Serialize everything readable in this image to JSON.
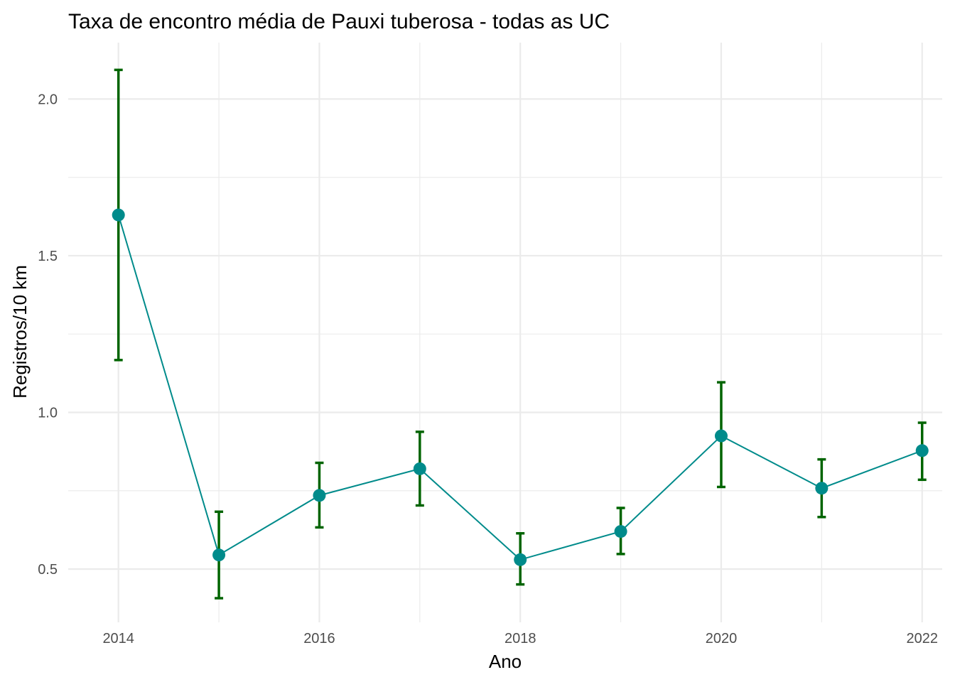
{
  "chart_data": {
    "type": "line",
    "title": "Taxa de encontro média de Pauxi tuberosa - todas as UC",
    "xlabel": "Ano",
    "ylabel": "Registros/10 km",
    "x": [
      2014,
      2015,
      2016,
      2017,
      2018,
      2019,
      2020,
      2021,
      2022
    ],
    "y": [
      1.63,
      0.545,
      0.735,
      0.82,
      0.53,
      0.62,
      0.925,
      0.758,
      0.878
    ],
    "ymin": [
      1.167,
      0.407,
      0.633,
      0.703,
      0.451,
      0.548,
      0.762,
      0.666,
      0.785
    ],
    "ymax": [
      2.093,
      0.683,
      0.839,
      0.938,
      0.614,
      0.695,
      1.096,
      0.85,
      0.967
    ],
    "xlim": [
      2013.5,
      2022.2
    ],
    "ylim": [
      0.33,
      2.18
    ],
    "x_ticks": [
      2014,
      2016,
      2018,
      2020,
      2022
    ],
    "y_ticks": [
      0.5,
      1.0,
      1.5,
      2.0
    ],
    "y_tick_labels": [
      "0.5",
      "1.0",
      "1.5",
      "2.0"
    ],
    "grid": true,
    "legend": "none",
    "colors": {
      "line": "#008b8b",
      "point": "#008b8b",
      "errorbar": "#006400",
      "grid": "#ebebeb"
    }
  }
}
